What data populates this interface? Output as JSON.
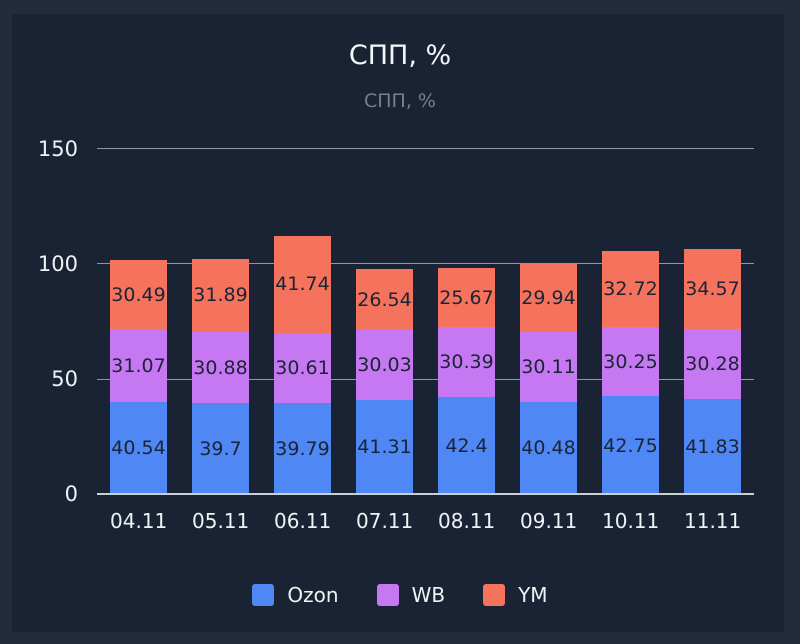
{
  "chart": {
    "title": "СПП, %",
    "subtitle": "СПП, %"
  },
  "chart_data": {
    "type": "bar",
    "stacked": true,
    "title": "СПП, %",
    "subtitle": "СПП, %",
    "xlabel": "",
    "ylabel": "",
    "ylim": [
      0,
      150
    ],
    "yticks": [
      0,
      50,
      100,
      150
    ],
    "grid": true,
    "legend_position": "bottom",
    "categories": [
      "04.11",
      "05.11",
      "06.11",
      "07.11",
      "08.11",
      "09.11",
      "10.11",
      "11.11"
    ],
    "series": [
      {
        "name": "Ozon",
        "color": "#4f87f5",
        "values": [
          40.54,
          39.7,
          39.79,
          41.31,
          42.4,
          40.48,
          42.75,
          41.83
        ]
      },
      {
        "name": "WB",
        "color": "#c678f2",
        "values": [
          31.07,
          30.88,
          30.61,
          30.03,
          30.39,
          30.11,
          30.25,
          30.28
        ]
      },
      {
        "name": "YM",
        "color": "#f5735c",
        "values": [
          30.49,
          31.89,
          41.74,
          26.54,
          25.67,
          29.94,
          32.72,
          34.57
        ]
      }
    ]
  },
  "colors": {
    "background_outer": "#222c3b",
    "background_inner": "#1a2333",
    "grid_line": "#8f97a2",
    "axis_line": "#c9cfd7",
    "title_text": "#f4f6f9",
    "subtitle_text": "#777f8b",
    "tick_text": "#eef1f5",
    "bar_label_text": "#1b2434"
  }
}
